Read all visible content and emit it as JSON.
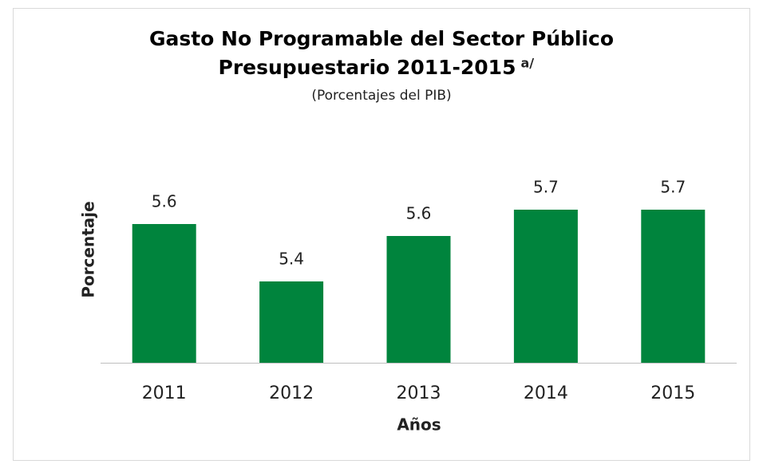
{
  "chart_data": {
    "type": "bar",
    "title": [
      "Gasto No Programable del Sector Público",
      "Presupuestario 2011-2015"
    ],
    "title_note": "a/",
    "subtitle": "(Porcentajes del PIB)",
    "x_label": "Años",
    "y_label": "Porcentaje",
    "categories": [
      "2011",
      "2012",
      "2013",
      "2014",
      "2015"
    ],
    "values": [
      5.64,
      5.4,
      5.59,
      5.7,
      5.7
    ],
    "value_labels": [
      "5.6",
      "5.4",
      "5.6",
      "5.7",
      "5.7"
    ],
    "color": "#00843d",
    "ylim": [
      5.06,
      5.8
    ]
  }
}
